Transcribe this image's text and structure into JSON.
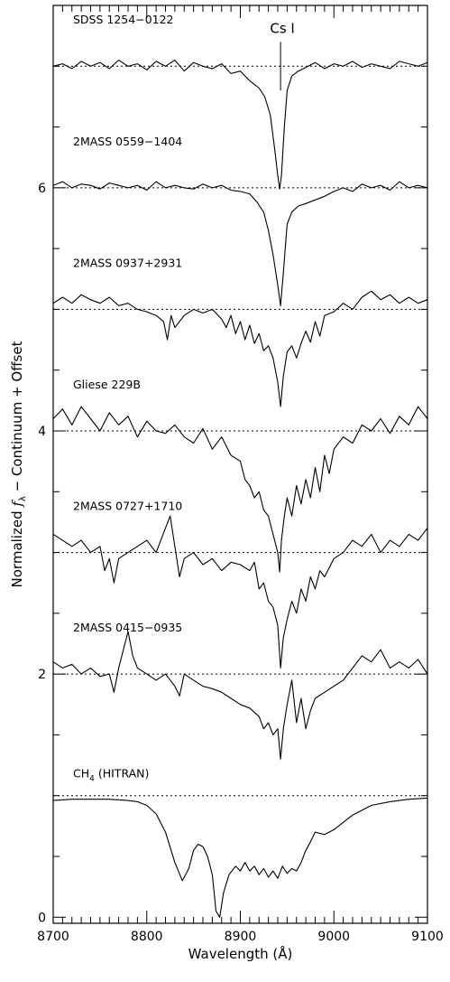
{
  "chart_data": {
    "type": "line",
    "title": "",
    "xlabel": "Wavelength (Å)",
    "ylabel_parts": {
      "pre": "Normalized ",
      "f": "f",
      "sub": "λ",
      "post": " − Continuum + Offset"
    },
    "xlim": [
      8700,
      9100
    ],
    "ylim": [
      -0.05,
      7.5
    ],
    "x_ticks": [
      8700,
      8800,
      8900,
      9000,
      9100
    ],
    "y_ticks": [
      0,
      2,
      4,
      6
    ],
    "annotation": {
      "text": "Cs I",
      "x": 8943,
      "line_y": [
        6.8,
        7.2
      ]
    },
    "series": [
      {
        "name": "SDSS 1254−0122",
        "name_parts": {
          "main": "SDSS 1254−0122",
          "sub": "",
          "post": ""
        },
        "offset": 7.0,
        "label_y": 7.35,
        "x": [
          8700,
          8710,
          8720,
          8730,
          8740,
          8750,
          8760,
          8770,
          8780,
          8790,
          8800,
          8810,
          8820,
          8830,
          8840,
          8850,
          8860,
          8870,
          8880,
          8890,
          8900,
          8910,
          8920,
          8926,
          8932,
          8937,
          8940,
          8942,
          8944,
          8947,
          8950,
          8955,
          8962,
          8970,
          8980,
          8990,
          9000,
          9010,
          9020,
          9030,
          9040,
          9050,
          9060,
          9070,
          9080,
          9090,
          9100
        ],
        "y": [
          7.0,
          7.02,
          6.98,
          7.04,
          7.0,
          7.03,
          6.98,
          7.05,
          7.0,
          7.02,
          6.97,
          7.04,
          7.0,
          7.05,
          6.96,
          7.03,
          7.0,
          6.98,
          7.02,
          6.94,
          6.96,
          6.88,
          6.82,
          6.75,
          6.6,
          6.3,
          6.1,
          5.99,
          6.1,
          6.5,
          6.8,
          6.92,
          6.96,
          6.99,
          7.03,
          6.98,
          7.02,
          7.0,
          7.04,
          6.99,
          7.02,
          7.0,
          6.98,
          7.04,
          7.02,
          7.0,
          7.03
        ]
      },
      {
        "name": "2MASS 0559−1404",
        "name_parts": {
          "main": "2MASS 0559−1404",
          "sub": "",
          "post": ""
        },
        "offset": 6.0,
        "label_y": 6.35,
        "x": [
          8700,
          8710,
          8720,
          8730,
          8740,
          8750,
          8760,
          8770,
          8780,
          8790,
          8800,
          8810,
          8820,
          8830,
          8840,
          8850,
          8860,
          8870,
          8880,
          8890,
          8900,
          8910,
          8918,
          8925,
          8930,
          8935,
          8940,
          8943,
          8946,
          8950,
          8955,
          8962,
          8970,
          8980,
          8990,
          9000,
          9010,
          9020,
          9030,
          9040,
          9050,
          9060,
          9070,
          9080,
          9090,
          9100
        ],
        "y": [
          6.02,
          6.05,
          6.0,
          6.03,
          6.02,
          5.99,
          6.04,
          6.02,
          6.0,
          6.02,
          5.98,
          6.05,
          6.0,
          6.02,
          6.0,
          5.99,
          6.03,
          6.0,
          6.02,
          5.98,
          5.97,
          5.95,
          5.88,
          5.8,
          5.65,
          5.45,
          5.2,
          5.03,
          5.3,
          5.7,
          5.8,
          5.85,
          5.87,
          5.9,
          5.93,
          5.97,
          6.0,
          5.97,
          6.03,
          6.0,
          6.02,
          5.98,
          6.05,
          6.0,
          6.02,
          6.0
        ]
      },
      {
        "name": "2MASS 0937+2931",
        "name_parts": {
          "main": "2MASS 0937+2931",
          "sub": "",
          "post": ""
        },
        "offset": 5.0,
        "label_y": 5.35,
        "x": [
          8700,
          8710,
          8720,
          8730,
          8740,
          8750,
          8760,
          8770,
          8780,
          8790,
          8800,
          8810,
          8818,
          8822,
          8826,
          8830,
          8840,
          8850,
          8860,
          8870,
          8880,
          8885,
          8890,
          8895,
          8900,
          8905,
          8910,
          8915,
          8920,
          8925,
          8930,
          8935,
          8940,
          8943,
          8946,
          8950,
          8955,
          8960,
          8965,
          8970,
          8975,
          8980,
          8985,
          8990,
          9000,
          9010,
          9020,
          9030,
          9040,
          9050,
          9060,
          9070,
          9080,
          9090,
          9100
        ],
        "y": [
          5.05,
          5.1,
          5.05,
          5.12,
          5.08,
          5.05,
          5.1,
          5.03,
          5.05,
          5.0,
          4.98,
          4.95,
          4.9,
          4.75,
          4.95,
          4.85,
          4.95,
          5.0,
          4.97,
          5.0,
          4.92,
          4.85,
          4.95,
          4.8,
          4.9,
          4.75,
          4.87,
          4.72,
          4.8,
          4.66,
          4.7,
          4.6,
          4.4,
          4.2,
          4.45,
          4.65,
          4.7,
          4.6,
          4.72,
          4.82,
          4.73,
          4.9,
          4.78,
          4.95,
          4.98,
          5.05,
          5.0,
          5.1,
          5.15,
          5.08,
          5.12,
          5.05,
          5.1,
          5.05,
          5.08
        ]
      },
      {
        "name": "Gliese 229B",
        "name_parts": {
          "main": "Gliese 229B",
          "sub": "",
          "post": ""
        },
        "offset": 4.0,
        "label_y": 4.35,
        "x": [
          8700,
          8710,
          8720,
          8730,
          8740,
          8750,
          8760,
          8770,
          8780,
          8790,
          8800,
          8810,
          8820,
          8830,
          8840,
          8850,
          8860,
          8870,
          8880,
          8890,
          8900,
          8905,
          8910,
          8915,
          8920,
          8925,
          8930,
          8935,
          8940,
          8942,
          8944,
          8947,
          8950,
          8955,
          8960,
          8965,
          8970,
          8975,
          8980,
          8985,
          8990,
          8995,
          9000,
          9010,
          9020,
          9030,
          9040,
          9050,
          9060,
          9070,
          9080,
          9090,
          9100
        ],
        "y": [
          4.1,
          4.18,
          4.05,
          4.2,
          4.1,
          4.0,
          4.15,
          4.05,
          4.12,
          3.95,
          4.08,
          4.0,
          3.98,
          4.05,
          3.95,
          3.9,
          4.02,
          3.85,
          3.95,
          3.8,
          3.75,
          3.6,
          3.55,
          3.45,
          3.5,
          3.35,
          3.3,
          3.15,
          3.0,
          2.84,
          3.1,
          3.3,
          3.45,
          3.3,
          3.55,
          3.4,
          3.6,
          3.45,
          3.7,
          3.5,
          3.8,
          3.65,
          3.85,
          3.95,
          3.9,
          4.05,
          4.0,
          4.1,
          3.98,
          4.12,
          4.05,
          4.2,
          4.1
        ]
      },
      {
        "name": "2MASS 0727+1710",
        "name_parts": {
          "main": "2MASS 0727+1710",
          "sub": "",
          "post": ""
        },
        "offset": 3.0,
        "label_y": 3.35,
        "x": [
          8700,
          8710,
          8720,
          8730,
          8740,
          8750,
          8755,
          8760,
          8765,
          8770,
          8780,
          8790,
          8800,
          8810,
          8820,
          8825,
          8830,
          8835,
          8840,
          8850,
          8860,
          8870,
          8880,
          8890,
          8900,
          8910,
          8915,
          8920,
          8925,
          8930,
          8935,
          8940,
          8943,
          8946,
          8950,
          8955,
          8960,
          8965,
          8970,
          8975,
          8980,
          8985,
          8990,
          9000,
          9010,
          9020,
          9030,
          9040,
          9050,
          9060,
          9070,
          9080,
          9090,
          9100
        ],
        "y": [
          3.15,
          3.1,
          3.05,
          3.1,
          3.0,
          3.05,
          2.85,
          2.95,
          2.75,
          2.95,
          3.0,
          3.05,
          3.1,
          3.0,
          3.2,
          3.3,
          3.05,
          2.8,
          2.95,
          3.0,
          2.9,
          2.95,
          2.85,
          2.92,
          2.9,
          2.85,
          2.92,
          2.7,
          2.75,
          2.6,
          2.55,
          2.4,
          2.05,
          2.3,
          2.45,
          2.6,
          2.5,
          2.7,
          2.6,
          2.8,
          2.7,
          2.85,
          2.8,
          2.95,
          3.0,
          3.1,
          3.05,
          3.15,
          3.0,
          3.1,
          3.05,
          3.15,
          3.1,
          3.2
        ]
      },
      {
        "name": "2MASS 0415−0935",
        "name_parts": {
          "main": "2MASS 0415−0935",
          "sub": "",
          "post": ""
        },
        "offset": 2.0,
        "label_y": 2.35,
        "x": [
          8700,
          8710,
          8720,
          8730,
          8740,
          8750,
          8760,
          8765,
          8770,
          8775,
          8780,
          8785,
          8790,
          8800,
          8810,
          8820,
          8830,
          8835,
          8840,
          8850,
          8860,
          8870,
          8880,
          8890,
          8900,
          8910,
          8920,
          8925,
          8930,
          8935,
          8940,
          8943,
          8946,
          8950,
          8955,
          8960,
          8965,
          8970,
          8975,
          8980,
          8990,
          9000,
          9010,
          9020,
          9030,
          9040,
          9050,
          9060,
          9070,
          9080,
          9090,
          9100
        ],
        "y": [
          2.1,
          2.05,
          2.08,
          2.0,
          2.05,
          1.98,
          2.0,
          1.85,
          2.05,
          2.2,
          2.35,
          2.15,
          2.05,
          2.0,
          1.95,
          2.0,
          1.9,
          1.82,
          2.0,
          1.95,
          1.9,
          1.88,
          1.85,
          1.8,
          1.75,
          1.72,
          1.65,
          1.55,
          1.6,
          1.5,
          1.55,
          1.3,
          1.55,
          1.75,
          1.95,
          1.6,
          1.8,
          1.55,
          1.7,
          1.8,
          1.85,
          1.9,
          1.95,
          2.05,
          2.15,
          2.1,
          2.2,
          2.05,
          2.1,
          2.05,
          2.12,
          2.0
        ]
      },
      {
        "name": "CH4 (HITRAN)",
        "name_parts": {
          "main": "CH",
          "sub": "4",
          "post": " (HITRAN)"
        },
        "offset": 1.0,
        "label_y": 1.15,
        "x": [
          8700,
          8720,
          8740,
          8760,
          8780,
          8790,
          8800,
          8810,
          8820,
          8830,
          8838,
          8845,
          8850,
          8855,
          8860,
          8865,
          8870,
          8874,
          8878,
          8882,
          8888,
          8895,
          8900,
          8905,
          8910,
          8915,
          8920,
          8925,
          8930,
          8935,
          8940,
          8945,
          8950,
          8955,
          8960,
          8965,
          8970,
          8975,
          8980,
          8990,
          9000,
          9010,
          9020,
          9030,
          9040,
          9060,
          9080,
          9100
        ],
        "y": [
          0.96,
          0.97,
          0.97,
          0.97,
          0.96,
          0.95,
          0.92,
          0.85,
          0.7,
          0.45,
          0.3,
          0.4,
          0.55,
          0.6,
          0.58,
          0.5,
          0.35,
          0.05,
          0.0,
          0.2,
          0.35,
          0.42,
          0.38,
          0.45,
          0.38,
          0.42,
          0.35,
          0.4,
          0.33,
          0.38,
          0.32,
          0.42,
          0.36,
          0.4,
          0.38,
          0.45,
          0.55,
          0.62,
          0.7,
          0.68,
          0.72,
          0.78,
          0.84,
          0.88,
          0.92,
          0.95,
          0.97,
          0.98
        ]
      }
    ]
  }
}
